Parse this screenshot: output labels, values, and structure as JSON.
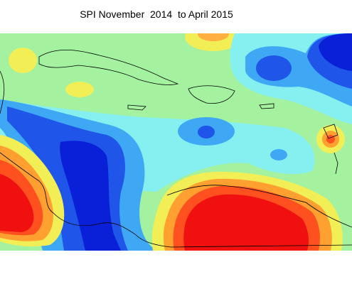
{
  "title": "SPI November  2014  to April 2015"
}
